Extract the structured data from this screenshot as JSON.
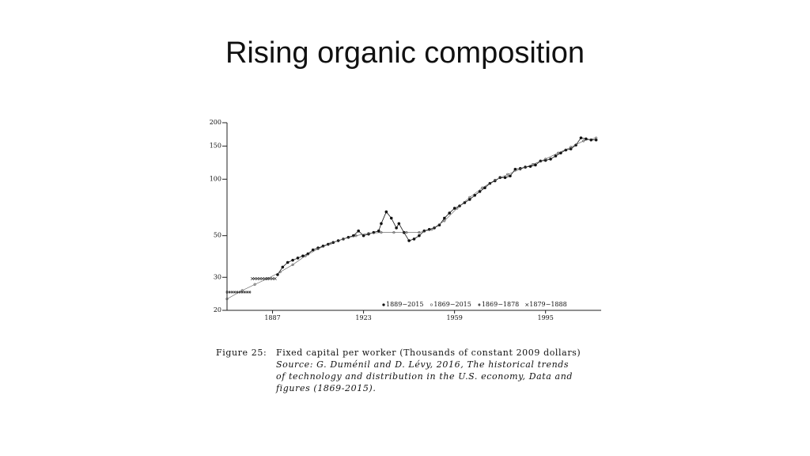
{
  "title": "Rising organic composition",
  "chart_data": {
    "type": "line",
    "yscale": "log",
    "xlim": [
      1869,
      2017
    ],
    "xticks": [
      1887,
      1923,
      1959,
      1995
    ],
    "ylim": [
      20,
      200
    ],
    "yticks": [
      20,
      30,
      50,
      100,
      150,
      200
    ],
    "series": [
      {
        "name": "1889−2015",
        "marker": "dot",
        "color": "#111111",
        "x": [
          1889,
          1891,
          1893,
          1895,
          1897,
          1899,
          1901,
          1903,
          1905,
          1907,
          1909,
          1911,
          1913,
          1915,
          1917,
          1919,
          1921,
          1923,
          1925,
          1927,
          1929,
          1930,
          1932,
          1934,
          1936,
          1937,
          1939,
          1941,
          1943,
          1945,
          1947,
          1949,
          1951,
          1953,
          1955,
          1957,
          1959,
          1961,
          1963,
          1965,
          1967,
          1969,
          1971,
          1973,
          1975,
          1977,
          1979,
          1981,
          1983,
          1985,
          1987,
          1989,
          1991,
          1993,
          1995,
          1997,
          1999,
          2001,
          2003,
          2005,
          2007,
          2009,
          2011,
          2013,
          2015
        ],
        "values": [
          31,
          34,
          36,
          37,
          38,
          39,
          40,
          42,
          43,
          44,
          45,
          46,
          47,
          48,
          49,
          50,
          53,
          50,
          51,
          52,
          53,
          58,
          67,
          62,
          55,
          58,
          52,
          47,
          48,
          50,
          53,
          54,
          55,
          57,
          62,
          66,
          70,
          72,
          75,
          78,
          82,
          86,
          90,
          95,
          98,
          102,
          102,
          104,
          113,
          114,
          116,
          117,
          119,
          125,
          126,
          128,
          133,
          138,
          143,
          145,
          152,
          166,
          164,
          162,
          162
        ]
      },
      {
        "name": "1869−2015",
        "marker": "circle",
        "color": "#555555",
        "x": [
          1869,
          1875,
          1880,
          1885,
          1890,
          1895,
          1900,
          1905,
          1910,
          1915,
          1920,
          1925,
          1930,
          1935,
          1940,
          1945,
          1950,
          1955,
          1960,
          1965,
          1970,
          1975,
          1980,
          1985,
          1990,
          1995,
          2000,
          2005,
          2010,
          2015
        ],
        "values": [
          23,
          25.5,
          27.5,
          29.5,
          32,
          35,
          39,
          42.5,
          45.5,
          48,
          50,
          51.5,
          52,
          52,
          52,
          52,
          54,
          60,
          70,
          80,
          90,
          99,
          106,
          113,
          120,
          128,
          138,
          148,
          160,
          166
        ]
      },
      {
        "name": "1869−1878",
        "marker": "star",
        "color": "#333333",
        "x": [
          1869,
          1870,
          1871,
          1872,
          1873,
          1874,
          1875,
          1876,
          1877,
          1878
        ],
        "values": [
          25,
          25,
          25,
          25,
          25,
          25,
          25,
          25,
          25,
          25
        ]
      },
      {
        "name": "1879−1888",
        "marker": "cross",
        "color": "#333333",
        "x": [
          1879,
          1880,
          1881,
          1882,
          1883,
          1884,
          1885,
          1886,
          1887,
          1888
        ],
        "values": [
          29.5,
          29.5,
          29.5,
          29.5,
          29.5,
          29.5,
          29.5,
          29.5,
          29.5,
          29.5
        ]
      }
    ]
  },
  "caption": {
    "label": "Figure 25:",
    "text": "Fixed capital per worker (Thousands of constant 2009 dollars)",
    "source": [
      "Source: G. Duménil and D. Lévy, 2016, The historical trends",
      "of technology and distribution in the U.S. economy, Data and",
      "figures (1869-2015)."
    ]
  }
}
